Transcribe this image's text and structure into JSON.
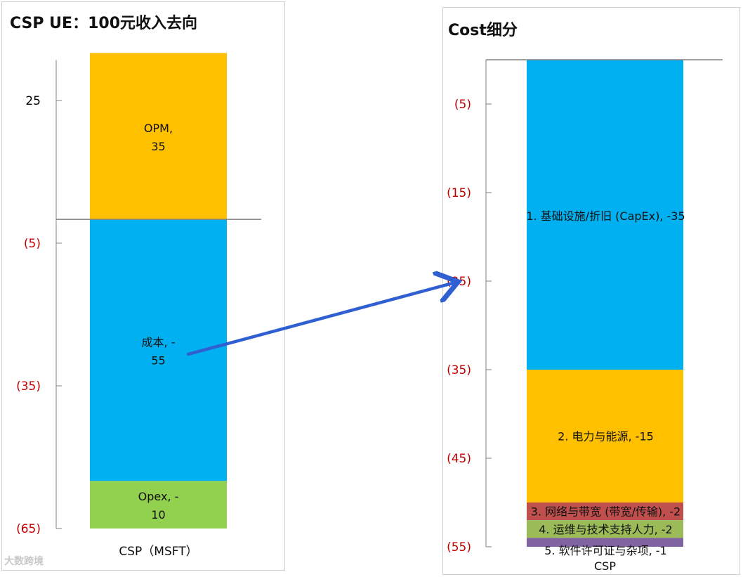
{
  "chart_data": [
    {
      "type": "stacked-bar",
      "title": "CSP UE：100元收入去向",
      "category": "CSP（MSFT）",
      "ylim": [
        -68,
        33
      ],
      "y_ticks": [
        {
          "value": 25,
          "label": "25"
        },
        {
          "value": -5,
          "label": "(5)"
        },
        {
          "value": -35,
          "label": "(35)"
        },
        {
          "value": -65,
          "label": "(65)"
        }
      ],
      "segments": [
        {
          "name": "OPM",
          "label_line1": "OPM,",
          "label_line2": "35",
          "from": 0,
          "to": 35,
          "color": "#FFC000"
        },
        {
          "name": "成本",
          "label_line1": "成本, -",
          "label_line2": "55",
          "from": 0,
          "to": -55,
          "color": "#00B0F0"
        },
        {
          "name": "Opex",
          "label_line1": "Opex, -",
          "label_line2": "10",
          "from": -55,
          "to": -65,
          "color": "#92D050"
        }
      ]
    },
    {
      "type": "stacked-bar",
      "title": "Cost细分",
      "category": "CSP",
      "ylim": [
        0,
        -55
      ],
      "y_ticks": [
        {
          "value": -5,
          "label": "(5)"
        },
        {
          "value": -15,
          "label": "(15)"
        },
        {
          "value": -25,
          "label": "(25)"
        },
        {
          "value": -35,
          "label": "(35)"
        },
        {
          "value": -45,
          "label": "(45)"
        },
        {
          "value": -55,
          "label": "(55)"
        }
      ],
      "segments": [
        {
          "name": "1. 基础设施/折旧 (CapEx)",
          "label": "1. 基础设施/折旧 (CapEx), -35",
          "from": 0,
          "to": -35,
          "color": "#00B0F0"
        },
        {
          "name": "2. 电力与能源",
          "label": "2. 电力与能源, -15",
          "from": -35,
          "to": -50,
          "color": "#FFC000"
        },
        {
          "name": "3. 网络与带宽 (带宽/传输)",
          "label": "3. 网络与带宽 (带宽/传输), -2",
          "from": -50,
          "to": -52,
          "color": "#C0504D"
        },
        {
          "name": "4. 运维与技术支持人力",
          "label": "4. 运维与技术支持人力, -2",
          "from": -52,
          "to": -54,
          "color": "#9BBB59"
        },
        {
          "name": "5. 软件许可证与杂项",
          "label": "5. 软件许可证与杂项, -1",
          "from": -54,
          "to": -55,
          "color": "#8064A2"
        }
      ]
    }
  ],
  "colors": {
    "negative_tick": "#C00000",
    "positive_tick": "#000000",
    "arrow": "#2F5FD0",
    "axis": "#808080"
  },
  "watermark": "大数跨境"
}
